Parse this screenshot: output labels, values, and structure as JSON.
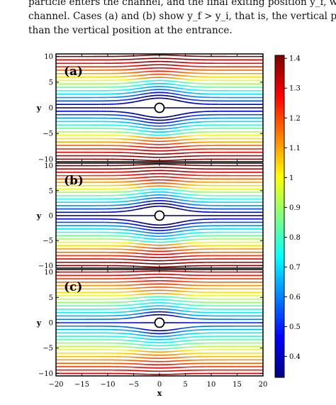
{
  "caption": {
    "lines": [
      "particle enters the channel, and the final exiting position y_f, where the",
      "channel. Cases (a) and (b) show y_f > y_i, that is, the vertical position a",
      "than the vertical position at the entrance."
    ]
  },
  "chart_data": [
    {
      "type": "streamlines",
      "panel_label": "(a)",
      "xlim": [
        -20,
        20
      ],
      "ylim": [
        -10.5,
        10.5
      ],
      "x_ticks": [
        -20,
        -15,
        -10,
        -5,
        0,
        5,
        10,
        15,
        20
      ],
      "y_ticks": [
        -10,
        -5,
        0,
        5,
        10
      ],
      "y_tick_labels": [
        "−10",
        "−5",
        "0",
        "5",
        "10"
      ],
      "ylabel": "y",
      "obstacle": {
        "shape": "circle",
        "center": [
          0,
          0
        ],
        "radius": 1
      },
      "streamlines": 31,
      "min_speed_near_obstacle": 0.33,
      "max_speed_top_bottom": 1.4
    },
    {
      "type": "streamlines",
      "panel_label": "(b)",
      "xlim": [
        -20,
        20
      ],
      "ylim": [
        -10.5,
        10.5
      ],
      "x_ticks": [
        -20,
        -15,
        -10,
        -5,
        0,
        5,
        10,
        15,
        20
      ],
      "y_ticks": [
        -10,
        -5,
        0,
        5,
        10
      ],
      "y_tick_labels": [
        "−10",
        "−5",
        "0",
        "5",
        "10"
      ],
      "ylabel": "y",
      "obstacle": {
        "shape": "circle",
        "center": [
          0,
          0
        ],
        "radius": 1
      },
      "streamlines": 31,
      "min_speed_near_obstacle": 0.33,
      "max_speed_top_bottom": 1.4
    },
    {
      "type": "streamlines",
      "panel_label": "(c)",
      "xlim": [
        -20,
        20
      ],
      "ylim": [
        -10.5,
        10.5
      ],
      "x_ticks": [
        -20,
        -15,
        -10,
        -5,
        0,
        5,
        10,
        15,
        20
      ],
      "x_tick_labels": [
        "−20",
        "−15",
        "−10",
        "−5",
        "0",
        "5",
        "10",
        "15",
        "20"
      ],
      "y_ticks": [
        -10,
        -5,
        0,
        5,
        10
      ],
      "y_tick_labels": [
        "−10",
        "−5",
        "0",
        "5",
        "10"
      ],
      "xlabel": "x",
      "ylabel": "y",
      "obstacle": {
        "shape": "circle",
        "center": [
          0,
          0
        ],
        "radius": 1
      },
      "streamlines": 31,
      "min_speed_near_obstacle": 0.5,
      "max_speed_top_bottom": 1.3
    }
  ],
  "colorbar": {
    "range": [
      0.33,
      1.41
    ],
    "ticks": [
      0.4,
      0.5,
      0.6,
      0.7,
      0.8,
      0.9,
      1,
      1.1,
      1.2,
      1.3,
      1.4
    ],
    "tick_labels": [
      "0.4",
      "0.5",
      "0.6",
      "0.7",
      "0.8",
      "0.9",
      "1",
      "1.1",
      "1.2",
      "1.3",
      "1.4"
    ],
    "colormap": "jet"
  }
}
